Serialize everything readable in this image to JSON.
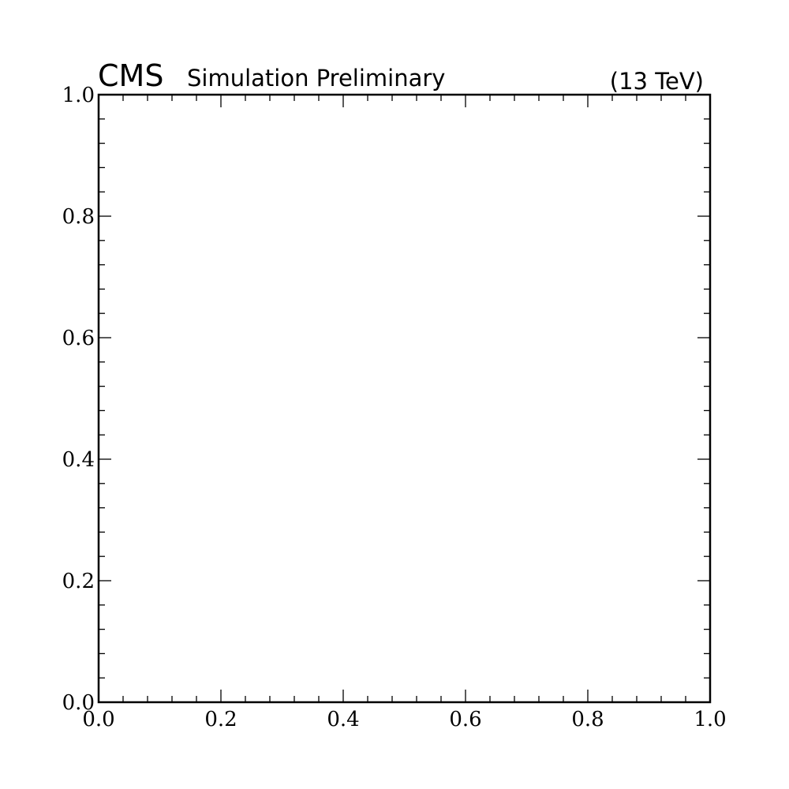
{
  "chart_data": {
    "type": "scatter",
    "title": "",
    "xlabel": "",
    "ylabel": "",
    "xlim": [
      0.0,
      1.0
    ],
    "ylim": [
      0.0,
      1.0
    ],
    "x_major_ticks": [
      0.0,
      0.2,
      0.4,
      0.6,
      0.8,
      1.0
    ],
    "y_major_ticks": [
      0.0,
      0.2,
      0.4,
      0.6,
      0.8,
      1.0
    ],
    "x_tick_labels": [
      "0.0",
      "0.2",
      "0.4",
      "0.6",
      "0.8",
      "1.0"
    ],
    "y_tick_labels": [
      "0.0",
      "0.2",
      "0.4",
      "0.6",
      "0.8",
      "1.0"
    ],
    "minor_ticks_per_major": 4,
    "grid": false,
    "series": []
  },
  "labels": {
    "experiment": "CMS",
    "status": "Simulation Preliminary",
    "energy": "(13 TeV)"
  }
}
